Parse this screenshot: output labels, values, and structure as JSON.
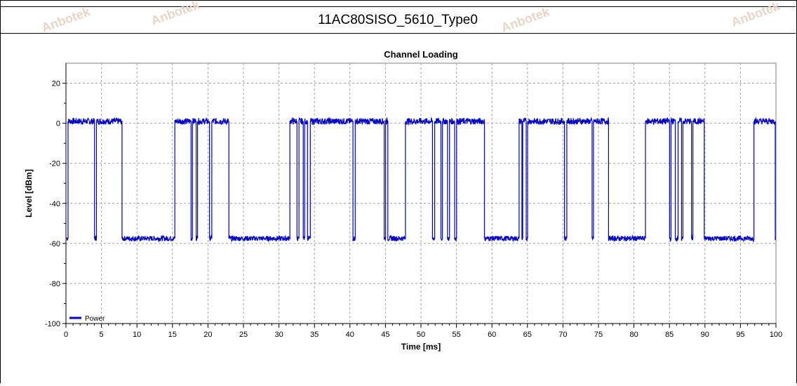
{
  "page_title": "11AC80SISO_5610_Type0",
  "watermark_text": "Anbotek",
  "colors": {
    "series": "#0000cc",
    "grid": "#a0a0a0",
    "background": "#ffffff"
  },
  "chart_data": {
    "type": "line",
    "title": "Channel Loading",
    "xlabel": "Time [ms]",
    "ylabel": "Level [dBm]",
    "xlim": [
      0,
      100
    ],
    "ylim": [
      -100,
      30
    ],
    "xticks": [
      0,
      5,
      10,
      15,
      20,
      25,
      30,
      35,
      40,
      45,
      50,
      55,
      60,
      65,
      70,
      75,
      80,
      85,
      90,
      95,
      100
    ],
    "yticks": [
      20,
      0,
      -20,
      -40,
      -60,
      -80,
      -100
    ],
    "grid": true,
    "legend_position": "bottom-left",
    "series": [
      {
        "name": "Power",
        "on_level": 1,
        "off_level": -57.5,
        "on_segments": [
          [
            0.3,
            4.0
          ],
          [
            4.3,
            7.9
          ],
          [
            15.3,
            17.6
          ],
          [
            17.8,
            18.3
          ],
          [
            18.5,
            20.2
          ],
          [
            20.5,
            22.9
          ],
          [
            31.5,
            32.5
          ],
          [
            32.8,
            33.4
          ],
          [
            33.6,
            34.0
          ],
          [
            34.4,
            40.4
          ],
          [
            40.7,
            44.8
          ],
          [
            45.0,
            45.3
          ],
          [
            47.8,
            51.6
          ],
          [
            51.9,
            52.8
          ],
          [
            53.0,
            53.7
          ],
          [
            54.0,
            54.7
          ],
          [
            55.0,
            58.9
          ],
          [
            63.8,
            64.2
          ],
          [
            64.3,
            64.8
          ],
          [
            65.0,
            70.2
          ],
          [
            70.5,
            74.1
          ],
          [
            74.3,
            76.4
          ],
          [
            81.6,
            85.0
          ],
          [
            85.2,
            85.8
          ],
          [
            86.2,
            86.7
          ],
          [
            86.9,
            88.1
          ],
          [
            88.3,
            89.9
          ],
          [
            96.9,
            99.9
          ]
        ]
      }
    ]
  }
}
